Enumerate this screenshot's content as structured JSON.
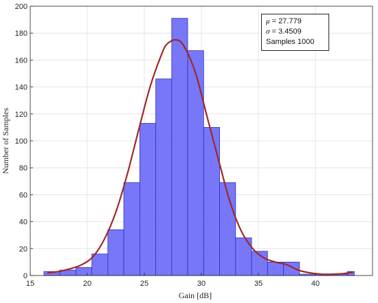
{
  "chart_data": {
    "type": "bar",
    "title": "",
    "xlabel": "Gain [dB]",
    "ylabel": "Number of Samples",
    "xlim": [
      15,
      45
    ],
    "ylim": [
      0,
      200
    ],
    "grid": true,
    "x_ticks": [
      15,
      20,
      25,
      30,
      35,
      40
    ],
    "y_ticks": [
      0,
      20,
      40,
      60,
      80,
      100,
      120,
      140,
      160,
      180,
      200
    ],
    "bins": [
      {
        "x0": 16.2,
        "x1": 17.6,
        "count": 3
      },
      {
        "x0": 17.6,
        "x1": 19.0,
        "count": 4
      },
      {
        "x0": 19.0,
        "x1": 20.4,
        "count": 6
      },
      {
        "x0": 20.4,
        "x1": 21.8,
        "count": 16
      },
      {
        "x0": 21.8,
        "x1": 23.2,
        "count": 34
      },
      {
        "x0": 23.2,
        "x1": 24.6,
        "count": 69
      },
      {
        "x0": 24.6,
        "x1": 26.0,
        "count": 113
      },
      {
        "x0": 26.0,
        "x1": 27.4,
        "count": 146
      },
      {
        "x0": 27.4,
        "x1": 28.8,
        "count": 191
      },
      {
        "x0": 28.8,
        "x1": 30.2,
        "count": 167
      },
      {
        "x0": 30.2,
        "x1": 31.6,
        "count": 110
      },
      {
        "x0": 31.6,
        "x1": 33.0,
        "count": 69
      },
      {
        "x0": 33.0,
        "x1": 34.4,
        "count": 28
      },
      {
        "x0": 34.4,
        "x1": 35.8,
        "count": 18
      },
      {
        "x0": 35.8,
        "x1": 37.2,
        "count": 10
      },
      {
        "x0": 37.2,
        "x1": 38.6,
        "count": 10
      },
      {
        "x0": 38.6,
        "x1": 40.0,
        "count": 1
      },
      {
        "x0": 40.0,
        "x1": 41.4,
        "count": 1
      },
      {
        "x0": 41.4,
        "x1": 42.8,
        "count": 1
      },
      {
        "x0": 42.8,
        "x1": 43.4,
        "count": 3
      }
    ],
    "fit_curve": {
      "x": [
        16.5,
        17.5,
        18.5,
        19.5,
        20.5,
        21.5,
        22.5,
        23.5,
        24.5,
        25.5,
        26.5,
        27.0,
        27.8,
        28.5,
        29.5,
        30.5,
        31.5,
        32.5,
        33.5,
        34.5,
        35.5,
        36.5,
        37.5,
        38.5,
        39.5,
        40.5,
        41.5,
        42.5,
        43.3
      ],
      "y": [
        2,
        3,
        5,
        8,
        14,
        27,
        47,
        75,
        108,
        140,
        164,
        172,
        175,
        170,
        150,
        118,
        86,
        55,
        33,
        20,
        13,
        10,
        8,
        4,
        2,
        1,
        1,
        1.5,
        2.5
      ]
    },
    "colors": {
      "bar_fill": "#7070f8",
      "bar_edge": "#3030c0",
      "fit_line": "#a02828",
      "grid": "#e4e4e4"
    },
    "annotation": {
      "mu_symbol": "μ",
      "mu_text": " = 27.779",
      "sigma_symbol": "σ",
      "sigma_text": " = 3.4509",
      "samples_text": "Samples 1000"
    }
  }
}
